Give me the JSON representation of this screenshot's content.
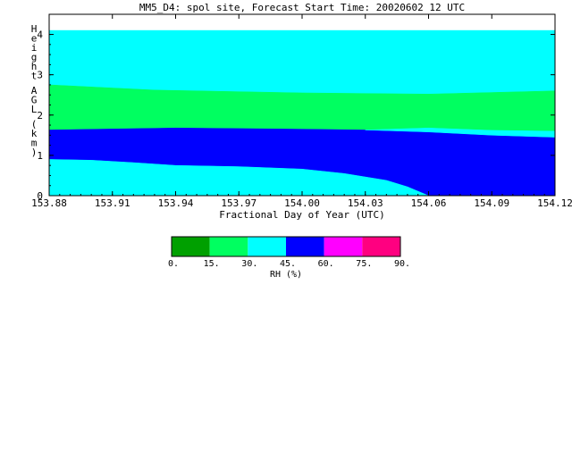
{
  "chart_data": {
    "type": "heatmap",
    "title": "MM5_D4: spol site,  Forecast Start Time: 20020602 12 UTC",
    "xlabel": "Fractional Day of Year (UTC)",
    "ylabel": "Height AGL (km)",
    "xlim": [
      153.88,
      154.12
    ],
    "ylim": [
      0,
      4.5
    ],
    "x_ticks": [
      153.88,
      153.91,
      153.94,
      153.97,
      154.0,
      154.03,
      154.06,
      154.09,
      154.12
    ],
    "x_tick_labels": [
      "153.88",
      "153.91",
      "153.94",
      "153.97",
      "154.00",
      "154.03",
      "154.06",
      "154.09",
      "154.12"
    ],
    "y_ticks": [
      0,
      1,
      2,
      3,
      4
    ],
    "y_tick_labels": [
      "0",
      "1",
      "2",
      "3",
      "4"
    ],
    "data_top_height_km": 4.1,
    "color_scale": {
      "label": "RH (%)",
      "levels": [
        0,
        15,
        30,
        45,
        60,
        75,
        90
      ],
      "level_labels": [
        "0.",
        "15.",
        "30.",
        "45.",
        "60.",
        "75.",
        "90."
      ],
      "colors": [
        "#00a000",
        "#00ff60",
        "#00ffff",
        "#0000ff",
        "#ff00ff",
        "#ff0080"
      ]
    },
    "bands": [
      {
        "color_index": 2,
        "range": "30-45",
        "lower": [
          [
            153.88,
            2.75
          ],
          [
            153.93,
            2.62
          ],
          [
            154.0,
            2.55
          ],
          [
            154.06,
            2.52
          ],
          [
            154.12,
            2.6
          ]
        ],
        "upper": [
          [
            153.88,
            4.1
          ],
          [
            154.12,
            4.1
          ]
        ]
      },
      {
        "color_index": 1,
        "range": "15-30",
        "lower": [
          [
            153.88,
            1.63
          ],
          [
            153.94,
            1.68
          ],
          [
            154.0,
            1.65
          ],
          [
            154.03,
            1.63
          ],
          [
            154.06,
            1.58
          ],
          [
            154.09,
            1.5
          ],
          [
            154.12,
            1.45
          ]
        ],
        "upper": [
          [
            153.88,
            2.75
          ],
          [
            153.93,
            2.62
          ],
          [
            154.0,
            2.55
          ],
          [
            154.06,
            2.52
          ],
          [
            154.12,
            2.6
          ]
        ]
      },
      {
        "color_index": 3,
        "range": "45-60",
        "lower": [
          [
            153.88,
            0.9
          ],
          [
            153.9,
            0.88
          ],
          [
            153.92,
            0.82
          ],
          [
            153.94,
            0.75
          ],
          [
            153.97,
            0.72
          ],
          [
            154.0,
            0.66
          ],
          [
            154.02,
            0.55
          ],
          [
            154.04,
            0.38
          ],
          [
            154.05,
            0.22
          ],
          [
            154.06,
            0.0
          ],
          [
            154.12,
            0.0
          ]
        ],
        "upper": [
          [
            153.88,
            1.63
          ],
          [
            153.94,
            1.68
          ],
          [
            154.0,
            1.65
          ],
          [
            154.03,
            1.63
          ],
          [
            154.06,
            1.58
          ],
          [
            154.09,
            1.5
          ],
          [
            154.12,
            1.45
          ]
        ]
      },
      {
        "color_index": 2,
        "range": "30-45",
        "lower": [
          [
            153.88,
            0.0
          ],
          [
            154.06,
            0.0
          ]
        ],
        "upper": [
          [
            153.88,
            0.9
          ],
          [
            153.9,
            0.88
          ],
          [
            153.92,
            0.82
          ],
          [
            153.94,
            0.75
          ],
          [
            153.97,
            0.72
          ],
          [
            154.0,
            0.66
          ],
          [
            154.02,
            0.55
          ],
          [
            154.04,
            0.38
          ],
          [
            154.05,
            0.22
          ],
          [
            154.06,
            0.0
          ]
        ]
      },
      {
        "color_index": 2,
        "range": "30-45",
        "lower": [
          [
            154.03,
            1.63
          ],
          [
            154.06,
            1.58
          ],
          [
            154.09,
            1.5
          ],
          [
            154.12,
            1.45
          ]
        ],
        "upper": [
          [
            154.03,
            1.63
          ],
          [
            154.06,
            1.68
          ],
          [
            154.09,
            1.62
          ],
          [
            154.12,
            1.6
          ]
        ]
      }
    ]
  }
}
